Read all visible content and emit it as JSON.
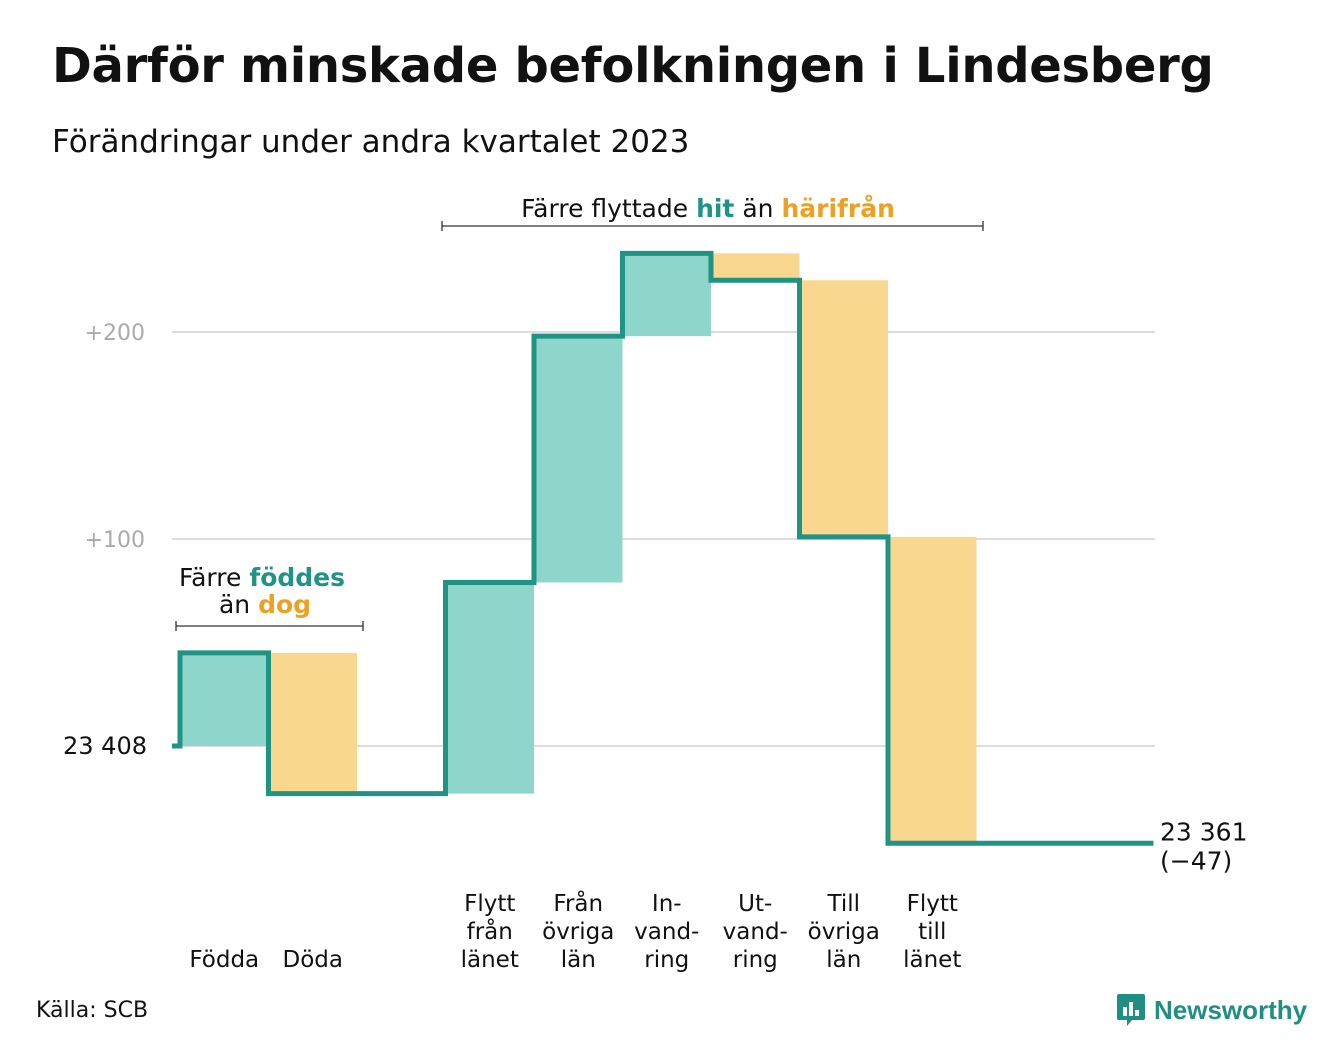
{
  "title": "Därför minskade befolkningen i Lindesberg",
  "subtitle": "Förändringar under andra kvartalet 2023",
  "source": "Källa: SCB",
  "brand": {
    "name": "Newsworthy",
    "icon": "newsworthy-logo-icon"
  },
  "colors": {
    "increase": "#8ed5cc",
    "decrease": "#f9d78e",
    "line": "#1f9485",
    "accent_teal": "#1f9485",
    "accent_orange": "#f0a020",
    "grid": "#dddddd",
    "axis_label": "#aaaaaa"
  },
  "chart_data": {
    "type": "waterfall",
    "start_value": 23408,
    "start_label": "23  408",
    "end_label": "23 361",
    "end_change_label": "(−47)",
    "ylim": [
      -48,
      238
    ],
    "y_ticks": [
      {
        "value": 0,
        "label": ""
      },
      {
        "value": 100,
        "label": "+100"
      },
      {
        "value": 200,
        "label": "+200"
      }
    ],
    "steps": [
      {
        "name": "Födda",
        "label_lines": [
          "Födda"
        ],
        "change": 45
      },
      {
        "name": "Döda",
        "label_lines": [
          "Döda"
        ],
        "change": -68
      },
      {
        "name": "spacer",
        "label_lines": [],
        "change": 0
      },
      {
        "name": "Flytt från länet",
        "label_lines": [
          "Flytt",
          "från",
          "länet"
        ],
        "change": 102
      },
      {
        "name": "Från övriga län",
        "label_lines": [
          "Från",
          "övriga",
          "län"
        ],
        "change": 119
      },
      {
        "name": "In-vandring",
        "label_lines": [
          "In-",
          "vand-",
          "ring"
        ],
        "change": 40
      },
      {
        "name": "Ut-vandring",
        "label_lines": [
          "Ut-",
          "vand-",
          "ring"
        ],
        "change": -13
      },
      {
        "name": "Till övriga län",
        "label_lines": [
          "Till",
          "övriga",
          "län"
        ],
        "change": -124
      },
      {
        "name": "Flytt till länet",
        "label_lines": [
          "Flytt",
          "till",
          "länet"
        ],
        "change": -148
      },
      {
        "name": "spacer",
        "label_lines": [],
        "change": 0
      },
      {
        "name": "spacer",
        "label_lines": [],
        "change": 0
      }
    ],
    "annotations": [
      {
        "id": "births",
        "line1_prefix": "Färre",
        "line1_highlight": "föddes",
        "line2_prefix": "än",
        "line2_highlight": "dog",
        "span": [
          0,
          1
        ]
      },
      {
        "id": "migration",
        "prefix": "Färre flyttade",
        "highlight1": "hit",
        "middle": "än",
        "highlight2": "härifrån",
        "span": [
          3,
          8
        ]
      }
    ]
  }
}
